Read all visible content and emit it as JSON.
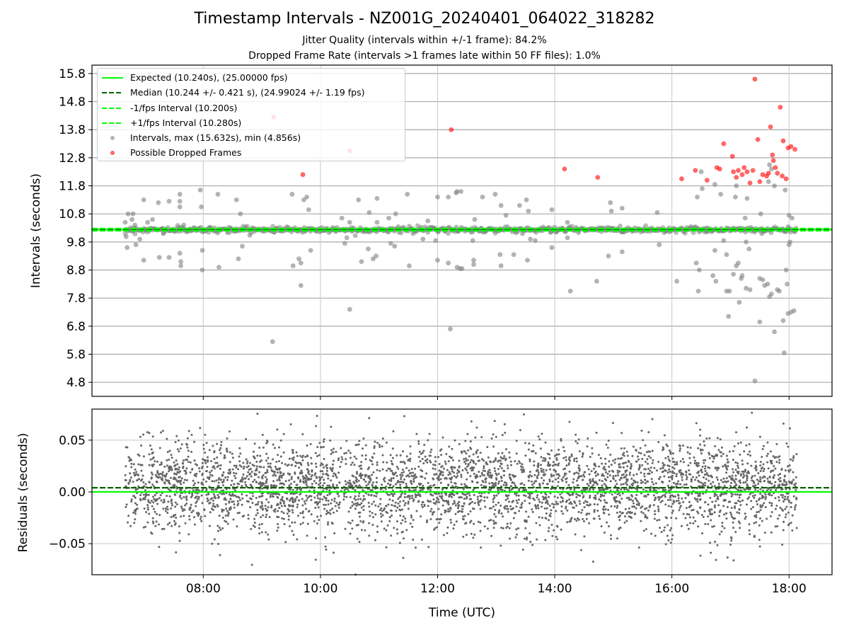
{
  "title": "Timestamp Intervals - NZ001G_20240401_064022_318282",
  "subtitle_lines": [
    "Jitter Quality (intervals within +/-1 frame): 84.2%",
    "Dropped Frame Rate (intervals >1 frames late within 50 FF files): 1.0%"
  ],
  "colors": {
    "expected": "#00ff00",
    "median": "#006400",
    "intervals": "#808080",
    "dropped": "#ff0000",
    "grid": "#b0b0b0"
  },
  "legend": [
    {
      "label": "Expected (10.240s), (25.00000 fps)",
      "style": "solid",
      "color": "#00ff00"
    },
    {
      "label": "Median (10.244 +/- 0.421 s), (24.99024 +/- 1.19 fps)",
      "style": "dashed",
      "color": "#006400"
    },
    {
      "label": "-1/fps Interval (10.200s)",
      "style": "dashed",
      "color": "#00ff00"
    },
    {
      "label": "+1/fps Interval (10.280s)",
      "style": "dashed",
      "color": "#00ff00"
    },
    {
      "label": "Intervals, max (15.632s), min (4.856s)",
      "style": "marker",
      "color": "#808080"
    },
    {
      "label": "Possible Dropped Frames",
      "style": "marker",
      "color": "#ff0000"
    }
  ],
  "chart_data": [
    {
      "type": "scatter",
      "ylabel": "Intervals (seconds)",
      "xlabel": "",
      "xlim": [
        "06:06",
        "18:44"
      ],
      "ylim": [
        4.3,
        16.1
      ],
      "yticks": [
        "4.8",
        "5.8",
        "6.8",
        "7.8",
        "8.8",
        "9.8",
        "10.8",
        "11.8",
        "12.8",
        "13.8",
        "14.8",
        "15.8"
      ],
      "xticks": [
        "08:00",
        "10:00",
        "12:00",
        "14:00",
        "16:00",
        "18:00"
      ],
      "show_xtick_labels": false,
      "grid": true,
      "legend_position": "top-left",
      "reference_lines": [
        {
          "name": "Expected",
          "y": 10.24,
          "style": "solid"
        },
        {
          "name": "Median",
          "y": 10.244,
          "style": "dashed"
        },
        {
          "name": "-1/fps Interval",
          "y": 10.2,
          "style": "dashed"
        },
        {
          "name": "+1/fps Interval",
          "y": 10.28,
          "style": "dashed"
        }
      ],
      "series": [
        {
          "name": "Intervals",
          "points": [
            [
              "06:40",
              10.5
            ],
            [
              "06:41",
              9.99
            ],
            [
              "06:42",
              9.6
            ],
            [
              "06:43",
              10.8
            ],
            [
              "06:47",
              10.6
            ],
            [
              "06:48",
              10.8
            ],
            [
              "06:50",
              10.4
            ],
            [
              "06:51",
              9.7
            ],
            [
              "06:55",
              9.9
            ],
            [
              "06:59",
              9.15
            ],
            [
              "06:59",
              11.3
            ],
            [
              "07:03",
              10.5
            ],
            [
              "07:08",
              10.6
            ],
            [
              "07:14",
              11.2
            ],
            [
              "07:15",
              9.25
            ],
            [
              "07:19",
              10.1
            ],
            [
              "07:25",
              11.25
            ],
            [
              "07:25",
              9.25
            ],
            [
              "07:36",
              11.05
            ],
            [
              "07:36",
              11.25
            ],
            [
              "07:36",
              11.5
            ],
            [
              "07:36",
              9.4
            ],
            [
              "07:37",
              9.1
            ],
            [
              "07:37",
              8.95
            ],
            [
              "07:40",
              10.4
            ],
            [
              "07:43",
              10.2
            ],
            [
              "07:57",
              11.65
            ],
            [
              "07:58",
              11.05
            ],
            [
              "07:59",
              9.5
            ],
            [
              "07:59",
              8.8
            ],
            [
              "08:15",
              11.5
            ],
            [
              "08:16",
              8.9
            ],
            [
              "08:34",
              11.3
            ],
            [
              "08:38",
              10.8
            ],
            [
              "08:40",
              9.65
            ],
            [
              "08:36",
              9.2
            ],
            [
              "09:11",
              6.25
            ],
            [
              "09:31",
              11.5
            ],
            [
              "09:32",
              8.95
            ],
            [
              "09:38",
              9.2
            ],
            [
              "09:40",
              9.05
            ],
            [
              "09:40",
              8.25
            ],
            [
              "09:43",
              11.3
            ],
            [
              "09:46",
              11.4
            ],
            [
              "09:48",
              10.95
            ],
            [
              "09:50",
              9.5
            ],
            [
              "10:22",
              10.65
            ],
            [
              "10:25",
              9.75
            ],
            [
              "10:27",
              9.95
            ],
            [
              "10:30",
              10.5
            ],
            [
              "10:30",
              7.4
            ],
            [
              "10:39",
              11.3
            ],
            [
              "10:42",
              9.1
            ],
            [
              "10:50",
              10.85
            ],
            [
              "10:49",
              9.55
            ],
            [
              "10:54",
              9.2
            ],
            [
              "10:57",
              9.3
            ],
            [
              "10:58",
              11.35
            ],
            [
              "10:58",
              10.5
            ],
            [
              "11:10",
              10.65
            ],
            [
              "11:12",
              9.75
            ],
            [
              "11:16",
              9.65
            ],
            [
              "11:17",
              10.8
            ],
            [
              "11:29",
              11.5
            ],
            [
              "11:31",
              8.95
            ],
            [
              "11:35",
              10.1
            ],
            [
              "11:45",
              9.9
            ],
            [
              "11:50",
              10.55
            ],
            [
              "11:58",
              9.85
            ],
            [
              "12:00",
              11.4
            ],
            [
              "12:00",
              9.15
            ],
            [
              "12:11",
              9.05
            ],
            [
              "12:11",
              11.4
            ],
            [
              "12:13",
              6.7
            ],
            [
              "12:19",
              11.55
            ],
            [
              "12:20",
              11.6
            ],
            [
              "12:20",
              8.9
            ],
            [
              "12:23",
              8.85
            ],
            [
              "12:24",
              11.6
            ],
            [
              "12:25",
              8.85
            ],
            [
              "12:36",
              9.85
            ],
            [
              "12:37",
              9.15
            ],
            [
              "12:37",
              9.0
            ],
            [
              "12:38",
              10.6
            ],
            [
              "12:46",
              11.4
            ],
            [
              "12:59",
              11.5
            ],
            [
              "13:04",
              9.35
            ],
            [
              "13:05",
              8.95
            ],
            [
              "13:05",
              11.1
            ],
            [
              "13:10",
              10.75
            ],
            [
              "13:18",
              9.35
            ],
            [
              "13:24",
              11.1
            ],
            [
              "13:27",
              10.1
            ],
            [
              "13:31",
              11.3
            ],
            [
              "13:32",
              9.15
            ],
            [
              "13:33",
              10.9
            ],
            [
              "13:35",
              9.9
            ],
            [
              "13:40",
              9.85
            ],
            [
              "13:57",
              9.6
            ],
            [
              "13:57",
              10.95
            ],
            [
              "14:13",
              10.5
            ],
            [
              "14:13",
              9.95
            ],
            [
              "14:16",
              8.05
            ],
            [
              "14:43",
              8.4
            ],
            [
              "14:55",
              9.3
            ],
            [
              "14:57",
              11.2
            ],
            [
              "14:58",
              10.9
            ],
            [
              "15:09",
              11.0
            ],
            [
              "15:09",
              9.45
            ],
            [
              "15:45",
              10.85
            ],
            [
              "15:47",
              9.7
            ],
            [
              "16:05",
              8.4
            ],
            [
              "16:25",
              9.05
            ],
            [
              "16:26",
              11.4
            ],
            [
              "16:27",
              8.05
            ],
            [
              "16:28",
              8.8
            ],
            [
              "16:31",
              11.7
            ],
            [
              "16:36",
              10.3
            ],
            [
              "16:42",
              8.6
            ],
            [
              "16:44",
              9.5
            ],
            [
              "16:44",
              11.85
            ],
            [
              "16:45",
              8.4
            ],
            [
              "16:50",
              11.5
            ],
            [
              "16:53",
              9.85
            ],
            [
              "16:56",
              8.05
            ],
            [
              "16:56",
              9.35
            ],
            [
              "16:58",
              7.15
            ],
            [
              "16:59",
              8.05
            ],
            [
              "17:03",
              8.65
            ],
            [
              "17:05",
              11.4
            ],
            [
              "17:06",
              8.95
            ],
            [
              "17:06",
              11.8
            ],
            [
              "17:08",
              9.05
            ],
            [
              "17:09",
              7.65
            ],
            [
              "17:11",
              8.5
            ],
            [
              "17:12",
              8.6
            ],
            [
              "17:15",
              10.65
            ],
            [
              "17:16",
              9.8
            ],
            [
              "17:16",
              8.15
            ],
            [
              "17:17",
              11.35
            ],
            [
              "17:19",
              9.55
            ],
            [
              "17:20",
              8.1
            ],
            [
              "17:25",
              10.2
            ],
            [
              "17:30",
              6.95
            ],
            [
              "17:30",
              8.5
            ],
            [
              "17:31",
              10.8
            ],
            [
              "17:32",
              10.1
            ],
            [
              "17:33",
              8.45
            ],
            [
              "17:35",
              8.25
            ],
            [
              "17:38",
              8.3
            ],
            [
              "17:39",
              11.95
            ],
            [
              "17:40",
              12.55
            ],
            [
              "17:40",
              7.85
            ],
            [
              "17:42",
              12.4
            ],
            [
              "17:42",
              7.95
            ],
            [
              "17:45",
              11.8
            ],
            [
              "17:45",
              6.6
            ],
            [
              "17:48",
              8.1
            ],
            [
              "17:50",
              8.05
            ],
            [
              "17:54",
              7.0
            ],
            [
              "17:55",
              5.85
            ],
            [
              "17:56",
              11.65
            ],
            [
              "17:57",
              8.8
            ],
            [
              "17:58",
              8.3
            ],
            [
              "17:59",
              7.25
            ],
            [
              "18:00",
              10.75
            ],
            [
              "18:00",
              9.7
            ],
            [
              "18:01",
              9.8
            ],
            [
              "18:02",
              7.3
            ],
            [
              "18:03",
              10.65
            ],
            [
              "18:05",
              7.35
            ],
            [
              "17:25",
              4.85
            ],
            [
              "16:30",
              12.3
            ]
          ]
        },
        {
          "name": "Possible Dropped Frames",
          "points": [
            [
              "09:12",
              14.25
            ],
            [
              "09:42",
              12.2
            ],
            [
              "10:30",
              13.05
            ],
            [
              "12:14",
              13.8
            ],
            [
              "14:10",
              12.4
            ],
            [
              "14:44",
              12.1
            ],
            [
              "16:10",
              12.05
            ],
            [
              "16:24",
              12.35
            ],
            [
              "16:36",
              12.0
            ],
            [
              "16:46",
              12.45
            ],
            [
              "16:49",
              12.4
            ],
            [
              "16:53",
              13.3
            ],
            [
              "17:03",
              12.3
            ],
            [
              "17:06",
              12.1
            ],
            [
              "17:08",
              12.35
            ],
            [
              "17:12",
              12.2
            ],
            [
              "17:14",
              12.45
            ],
            [
              "17:17",
              12.3
            ],
            [
              "17:20",
              11.9
            ],
            [
              "17:23",
              12.35
            ],
            [
              "17:25",
              15.6
            ],
            [
              "17:28",
              13.45
            ],
            [
              "17:30",
              11.95
            ],
            [
              "17:33",
              12.2
            ],
            [
              "17:37",
              12.15
            ],
            [
              "17:39",
              12.25
            ],
            [
              "17:41",
              13.9
            ],
            [
              "17:43",
              12.9
            ],
            [
              "17:44",
              12.7
            ],
            [
              "17:46",
              12.45
            ],
            [
              "17:48",
              12.25
            ],
            [
              "17:51",
              14.6
            ],
            [
              "17:53",
              12.15
            ],
            [
              "17:54",
              13.4
            ],
            [
              "17:57",
              12.05
            ],
            [
              "17:59",
              13.15
            ],
            [
              "18:02",
              13.2
            ],
            [
              "18:06",
              13.1
            ],
            [
              "17:02",
              12.85
            ]
          ]
        }
      ],
      "dense_band": {
        "series": "Intervals",
        "x_range": [
          "06:40",
          "18:08"
        ],
        "center": 10.24,
        "spread": 0.05
      }
    },
    {
      "type": "scatter",
      "ylabel": "Residuals (seconds)",
      "xlabel": "Time (UTC)",
      "xlim": [
        "06:06",
        "18:44"
      ],
      "ylim": [
        -0.08,
        0.08
      ],
      "yticks": [
        "−0.05",
        "0.00",
        "0.05"
      ],
      "ytick_values": [
        -0.05,
        0.0,
        0.05
      ],
      "xticks": [
        "08:00",
        "10:00",
        "12:00",
        "14:00",
        "16:00",
        "18:00"
      ],
      "grid": true,
      "reference_lines": [
        {
          "name": "Expected",
          "y": 0.0,
          "style": "solid"
        },
        {
          "name": "Median",
          "y": 0.004,
          "style": "dashed"
        }
      ],
      "residual_cloud": {
        "x_range": [
          "06:40",
          "18:08"
        ],
        "count": 4000,
        "center": 0.005,
        "spread": 0.022,
        "min": -0.08,
        "max": 0.08
      }
    }
  ]
}
